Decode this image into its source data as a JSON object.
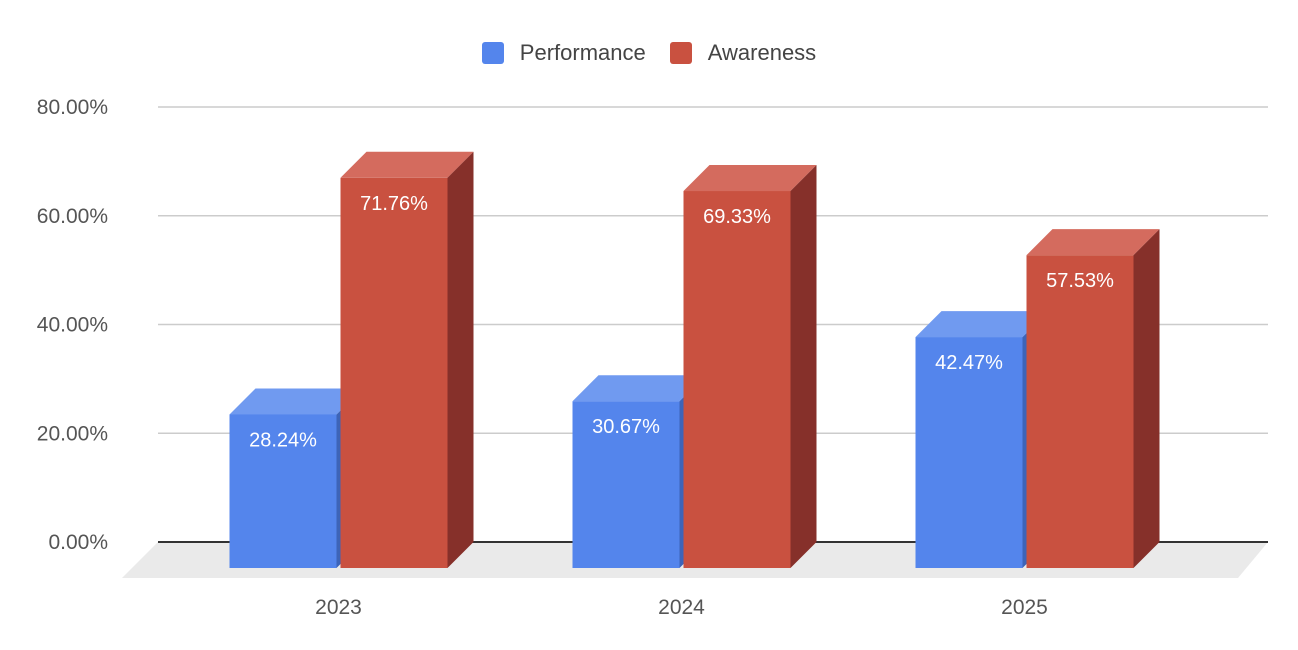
{
  "chart_data": {
    "type": "bar",
    "style": "3d-clustered-column",
    "categories": [
      "2023",
      "2024",
      "2025"
    ],
    "series": [
      {
        "name": "Performance",
        "values": [
          28.24,
          30.67,
          42.47
        ],
        "labels": [
          "28.24%",
          "30.67%",
          "42.47%"
        ]
      },
      {
        "name": "Awareness",
        "values": [
          71.76,
          69.33,
          57.53
        ],
        "labels": [
          "71.76%",
          "69.33%",
          "57.53%"
        ]
      }
    ],
    "yticks": [
      0,
      20,
      40,
      60,
      80
    ],
    "ytick_labels": [
      "0.00%",
      "20.00%",
      "40.00%",
      "60.00%",
      "80.00%"
    ],
    "ylim": [
      0,
      80
    ],
    "grid": true,
    "legend_position": "top-center",
    "title": "",
    "xlabel": "",
    "ylabel": ""
  },
  "colors": {
    "performance": "#5485ec",
    "awareness": "#c95140",
    "grid": "#cccccc",
    "floor": "#eaeaea",
    "axis": "#333333"
  },
  "legend": [
    {
      "label": "Performance",
      "color": "#5485ec"
    },
    {
      "label": "Awareness",
      "color": "#c95140"
    }
  ]
}
